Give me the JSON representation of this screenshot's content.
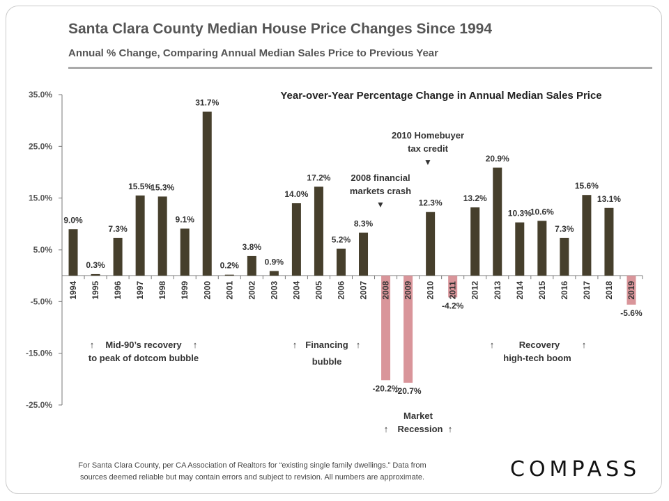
{
  "header": {
    "title": "Santa Clara County Median House Price Changes Since 1994",
    "subtitle": "Annual % Change, Comparing Annual Median Sales Price to Previous Year"
  },
  "chart_data": {
    "type": "bar",
    "title": "Year-over-Year Percentage Change in Annual Median Sales Price",
    "xlabel": "",
    "ylabel": "",
    "ylim": [
      -25,
      35
    ],
    "yticks": [
      "35.0%",
      "25.0%",
      "15.0%",
      "5.0%",
      "-5.0%",
      "-15.0%",
      "-25.0%"
    ],
    "grid": false,
    "categories": [
      "1994",
      "1995",
      "1996",
      "1997",
      "1998",
      "1999",
      "2000",
      "2001",
      "2002",
      "2003",
      "2004",
      "2005",
      "2006",
      "2007",
      "2008",
      "2009",
      "2010",
      "2011",
      "2012",
      "2013",
      "2014",
      "2015",
      "2016",
      "2017",
      "2018",
      "2019"
    ],
    "values": [
      9.0,
      0.3,
      7.3,
      15.5,
      15.3,
      9.1,
      31.7,
      0.2,
      3.8,
      0.9,
      14.0,
      17.2,
      5.2,
      8.3,
      -20.2,
      -20.7,
      12.3,
      -4.2,
      13.2,
      20.9,
      10.3,
      10.6,
      7.3,
      15.6,
      13.1,
      -5.6
    ],
    "value_labels": [
      "9.0%",
      "0.3%",
      "7.3%",
      "15.5%",
      "15.3%",
      "9.1%",
      "31.7%",
      "0.2%",
      "3.8%",
      "0.9%",
      "14.0%",
      "17.2%",
      "5.2%",
      "8.3%",
      "-20.2%",
      "-20.7%",
      "12.3%",
      "-4.2%",
      "13.2%",
      "20.9%",
      "10.3%",
      "10.6%",
      "7.3%",
      "15.6%",
      "13.1%",
      "-5.6%"
    ],
    "colors": {
      "positive": "#463f2c",
      "negative": "#d9959a"
    },
    "annotations": [
      "2010 Homebuyer tax credit",
      "2008 financial markets crash",
      "Mid-90’s recovery to peak of dotcom bubble",
      "Financing bubble",
      "Market Recession",
      "Recovery high-tech boom"
    ]
  },
  "annotations": {
    "homebuyer_line1": "2010 Homebuyer",
    "homebuyer_line2": "tax credit",
    "crash_line1": "2008 financial",
    "crash_line2": "markets crash",
    "mid90_line1": "Mid-90’s recovery",
    "mid90_line2": "to peak of dotcom bubble",
    "financing_line1": "Financing",
    "financing_line2": "bubble",
    "recession_line1": "Market",
    "recession_line2": "Recession",
    "recovery_line1": "Recovery",
    "recovery_line2": "high-tech boom",
    "up_arrow": "↑",
    "down_arrow": "▼"
  },
  "footer": {
    "note_line1": "For Santa Clara County, per CA Association of Realtors for “existing single family dwellings.” Data from",
    "note_line2": "sources deemed reliable but may contain errors and subject to revision.  All numbers are approximate.",
    "logo": "COMPASS"
  }
}
